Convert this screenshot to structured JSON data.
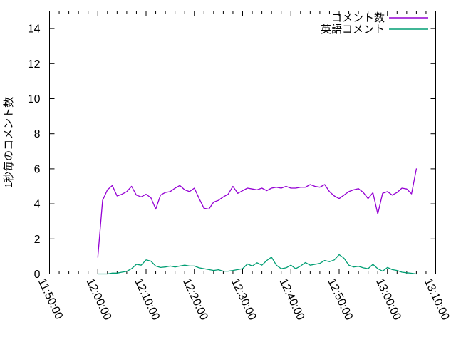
{
  "window": {
    "background": "#ffffff",
    "foreground": "#000000"
  },
  "chart_data": {
    "type": "line",
    "title": "",
    "xlabel": "",
    "ylabel": "1秒毎のコメント数",
    "ylim": [
      0,
      15
    ],
    "yticks": [
      0,
      2,
      4,
      6,
      8,
      10,
      12,
      14
    ],
    "grid": false,
    "legend": {
      "position": "top-right-inside",
      "entries": [
        "コメント数",
        "英語コメント"
      ]
    },
    "x_axis": {
      "tick_labels": [
        "11:50:00",
        "12:00:00",
        "12:10:00",
        "12:20:00",
        "12:30:00",
        "12:40:00",
        "12:50:00",
        "13:00:00",
        "13:10:00"
      ],
      "tick_minutes": [
        0,
        10,
        20,
        30,
        40,
        50,
        60,
        70,
        80
      ],
      "minor_tick_interval_minutes": 2,
      "xlim_minutes": [
        0,
        80
      ],
      "label_rotation_deg": 65
    },
    "series": [
      {
        "name": "コメント数",
        "color": "#9400d3",
        "start_minute": 10,
        "step_minutes": 1,
        "values": [
          0.95,
          4.2,
          4.8,
          5.05,
          4.45,
          4.55,
          4.7,
          5.0,
          4.5,
          4.4,
          4.55,
          4.35,
          3.7,
          4.5,
          4.65,
          4.7,
          4.9,
          5.05,
          4.8,
          4.7,
          4.9,
          4.3,
          3.75,
          3.7,
          4.1,
          4.2,
          4.4,
          4.55,
          5.0,
          4.6,
          4.75,
          4.9,
          4.85,
          4.8,
          4.9,
          4.75,
          4.9,
          4.95,
          4.9,
          5.0,
          4.9,
          4.9,
          4.95,
          4.95,
          5.1,
          5.0,
          4.95,
          5.1,
          4.7,
          4.45,
          4.3,
          4.5,
          4.7,
          4.8,
          4.87,
          4.65,
          4.3,
          4.64,
          3.42,
          4.6,
          4.7,
          4.5,
          4.65,
          4.9,
          4.85,
          4.57,
          6.0
        ]
      },
      {
        "name": "英語コメント",
        "color": "#009e73",
        "start_minute": 10,
        "step_minutes": 1,
        "values": [
          0,
          0,
          0,
          0.05,
          0.05,
          0.1,
          0.15,
          0.3,
          0.55,
          0.5,
          0.8,
          0.73,
          0.45,
          0.37,
          0.4,
          0.45,
          0.4,
          0.45,
          0.5,
          0.45,
          0.45,
          0.35,
          0.3,
          0.25,
          0.2,
          0.24,
          0.16,
          0.16,
          0.2,
          0.25,
          0.3,
          0.57,
          0.45,
          0.64,
          0.5,
          0.77,
          0.96,
          0.5,
          0.3,
          0.35,
          0.5,
          0.3,
          0.45,
          0.65,
          0.5,
          0.55,
          0.6,
          0.77,
          0.7,
          0.8,
          1.1,
          0.9,
          0.5,
          0.4,
          0.44,
          0.35,
          0.3,
          0.55,
          0.3,
          0.16,
          0.37,
          0.25,
          0.2,
          0.1,
          0.07,
          0.04,
          0
        ]
      }
    ]
  }
}
